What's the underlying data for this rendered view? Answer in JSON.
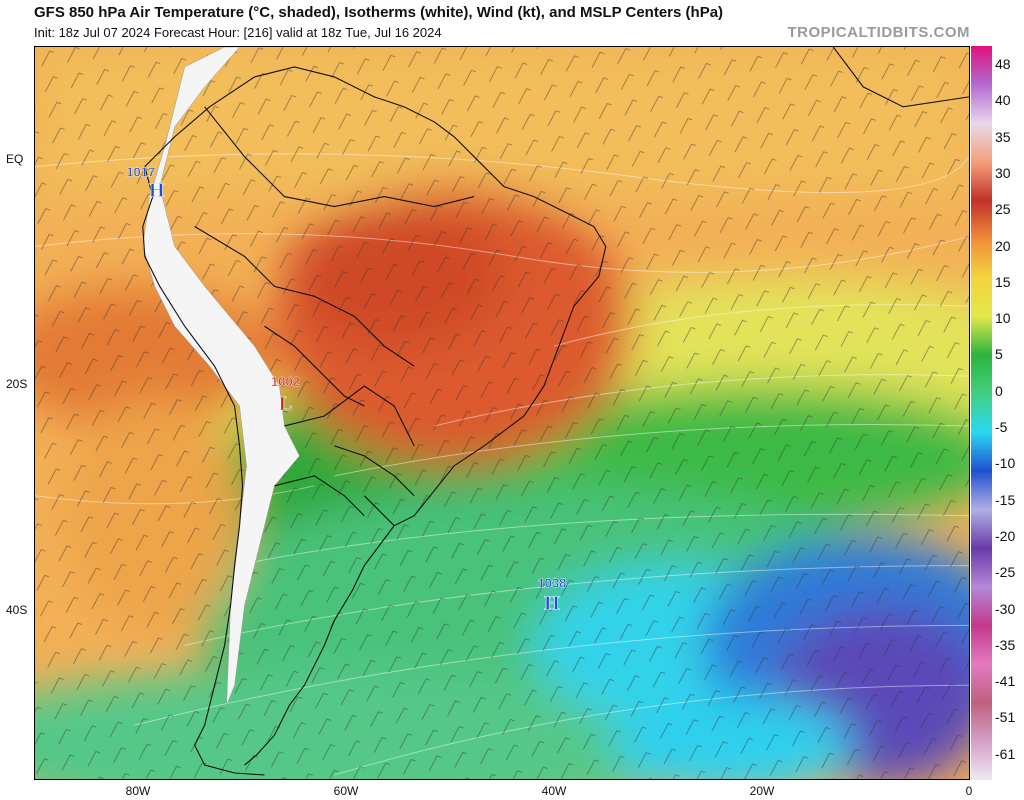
{
  "header": {
    "title": "GFS 850 hPa Air Temperature (°C, shaded), Isotherms (white), Wind (kt), and MSLP Centers (hPa)",
    "subtitle": "Init: 18z Jul 07 2024   Forecast Hour: [216]   valid at 18z Tue, Jul 16 2024",
    "brand": "TROPICALTIDBITS.COM"
  },
  "axes": {
    "lat_labels": [
      "EQ",
      "20S",
      "40S"
    ],
    "lon_labels": [
      "80W",
      "60W",
      "40W",
      "20W",
      "0"
    ]
  },
  "colorbar": {
    "labels": [
      "48",
      "40",
      "35",
      "30",
      "25",
      "20",
      "15",
      "10",
      "5",
      "0",
      "-5",
      "-10",
      "-15",
      "-20",
      "-25",
      "-30",
      "-35",
      "-41",
      "-51",
      "-61"
    ],
    "colors": [
      "#e0117e",
      "#b26ad0",
      "#e8d8ec",
      "#f4a07a",
      "#c2302a",
      "#ef8d3a",
      "#f4d43c",
      "#e0e84a",
      "#2eb33e",
      "#42d080",
      "#28d8f4",
      "#2050d0",
      "#b0b0e4",
      "#6a3aa8",
      "#b488d8",
      "#c23a8a",
      "#e27ac0",
      "#c0607e",
      "#d4a0c8",
      "#f0e8f4"
    ]
  },
  "pressure_centers": [
    {
      "type": "H",
      "value": "1017",
      "color": "#1f4fd0"
    },
    {
      "type": "L",
      "value": "1002",
      "color": "#c62828"
    },
    {
      "type": "H",
      "value": "1038",
      "color": "#1f4fd0"
    }
  ]
}
